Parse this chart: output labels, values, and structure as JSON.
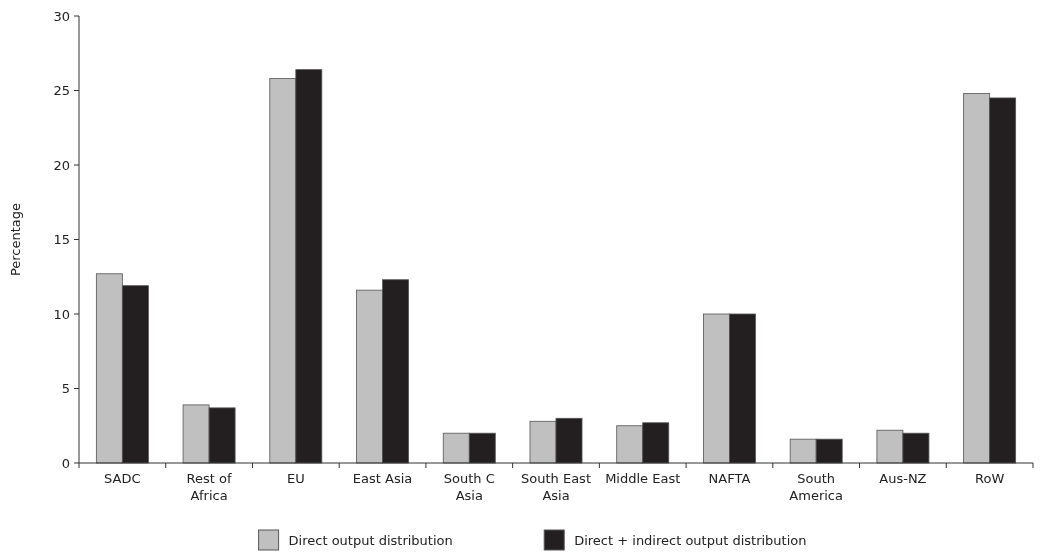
{
  "chart_data": {
    "type": "bar",
    "ylabel": "Percentage",
    "categories": [
      "SADC",
      "Rest of Africa",
      "EU",
      "East Asia",
      "South C Asia",
      "South East Asia",
      "Middle East",
      "NAFTA",
      "South America",
      "Aus-NZ",
      "RoW"
    ],
    "series": [
      {
        "name": "Direct output distribution",
        "color": "#c0c0c0",
        "values": [
          12.7,
          3.9,
          25.8,
          11.6,
          2.0,
          2.8,
          2.5,
          10.0,
          1.6,
          2.2,
          24.8
        ]
      },
      {
        "name": "Direct + indirect output distribution",
        "color": "#231f20",
        "values": [
          11.9,
          3.7,
          26.4,
          12.3,
          2.0,
          3.0,
          2.7,
          10.0,
          1.6,
          2.0,
          24.5
        ]
      }
    ],
    "ylim": [
      0,
      30
    ],
    "yticks": [
      0,
      5,
      10,
      15,
      20,
      25,
      30
    ],
    "grid": false,
    "legend": "bottom"
  }
}
